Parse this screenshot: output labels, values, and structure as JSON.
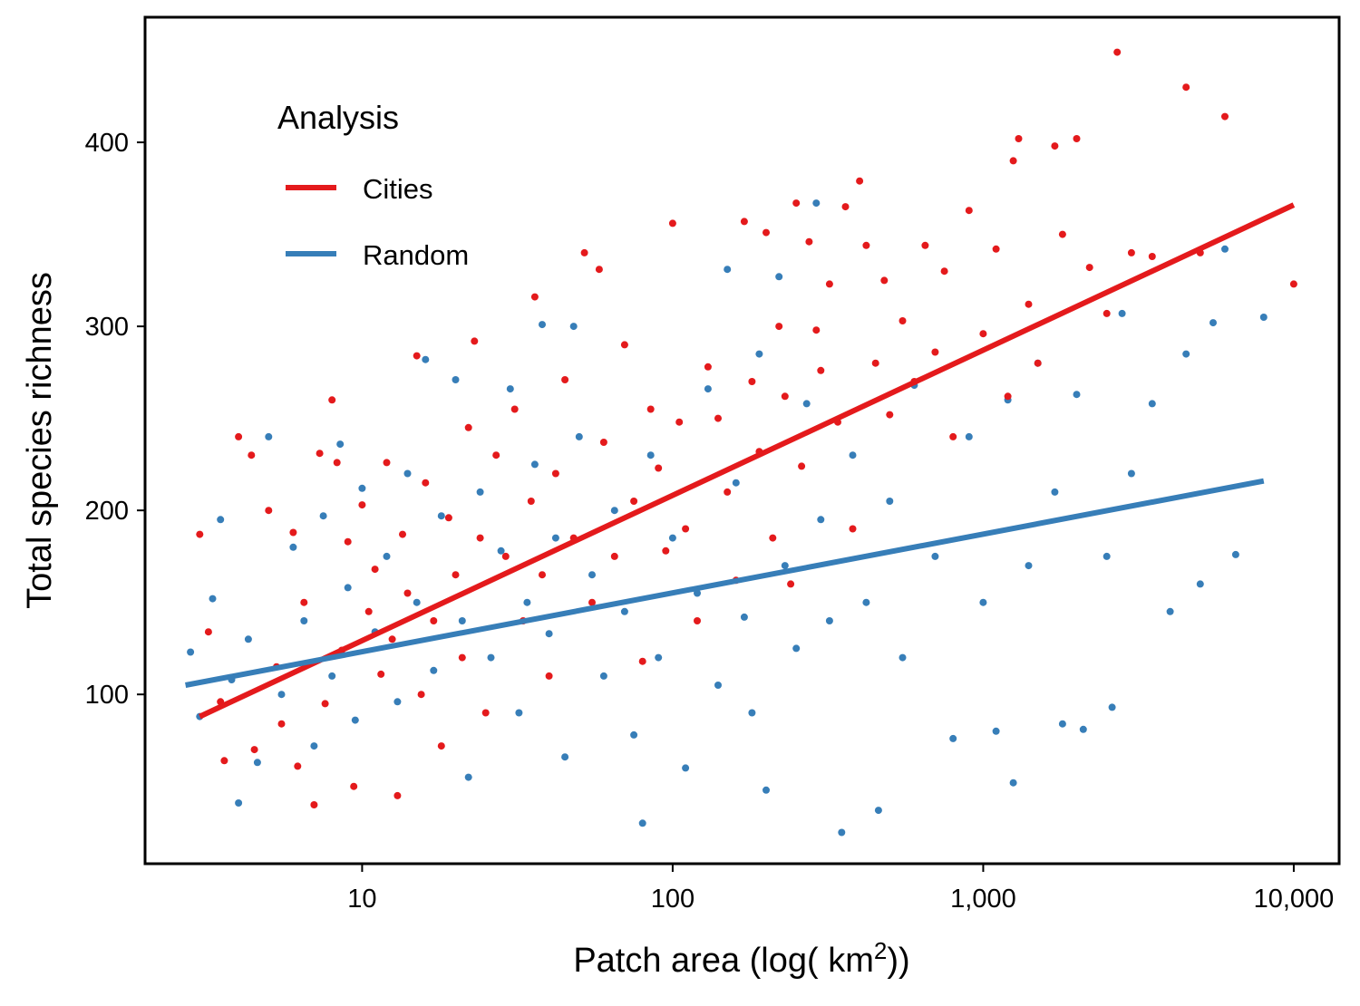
{
  "chart_data": {
    "type": "scatter",
    "xlabel_main": "Patch area (log( km",
    "xlabel_sup": "2",
    "xlabel_end": "))",
    "ylabel": "Total species richness",
    "x_scale": "log10",
    "xlim": [
      2,
      14000
    ],
    "ylim": [
      8,
      468
    ],
    "x_ticks": [
      10,
      100,
      1000,
      10000
    ],
    "x_tick_labels": [
      "10",
      "100",
      "1,000",
      "10,000"
    ],
    "y_ticks": [
      100,
      200,
      300,
      400
    ],
    "y_tick_labels": [
      "100",
      "200",
      "300",
      "400"
    ],
    "grid": false,
    "legend": {
      "title": "Analysis",
      "position": "top-left",
      "items": [
        {
          "label": "Cities",
          "color": "#e41a1c"
        },
        {
          "label": "Random",
          "color": "#377eb8"
        }
      ]
    },
    "series": [
      {
        "name": "Cities",
        "color": "#e41a1c",
        "fit_line": {
          "x": [
            3,
            10000
          ],
          "y": [
            88,
            366
          ]
        },
        "points": [
          [
            3,
            187
          ],
          [
            3.2,
            134
          ],
          [
            3.5,
            96
          ],
          [
            3.6,
            64
          ],
          [
            4,
            240
          ],
          [
            4.4,
            230
          ],
          [
            4.5,
            70
          ],
          [
            5,
            200
          ],
          [
            5.3,
            115
          ],
          [
            5.5,
            84
          ],
          [
            6,
            188
          ],
          [
            6.2,
            61
          ],
          [
            6.5,
            150
          ],
          [
            7,
            40
          ],
          [
            7.3,
            231
          ],
          [
            7.6,
            95
          ],
          [
            8,
            260
          ],
          [
            8.3,
            226
          ],
          [
            8.6,
            124
          ],
          [
            9,
            183
          ],
          [
            9.4,
            50
          ],
          [
            10,
            203
          ],
          [
            10.5,
            145
          ],
          [
            11,
            168
          ],
          [
            11.5,
            111
          ],
          [
            12,
            226
          ],
          [
            12.5,
            130
          ],
          [
            13,
            45
          ],
          [
            13.5,
            187
          ],
          [
            14,
            155
          ],
          [
            15,
            284
          ],
          [
            15.5,
            100
          ],
          [
            16,
            215
          ],
          [
            17,
            140
          ],
          [
            18,
            72
          ],
          [
            19,
            196
          ],
          [
            20,
            165
          ],
          [
            21,
            120
          ],
          [
            22,
            245
          ],
          [
            23,
            292
          ],
          [
            24,
            185
          ],
          [
            25,
            90
          ],
          [
            27,
            230
          ],
          [
            29,
            175
          ],
          [
            31,
            255
          ],
          [
            33,
            140
          ],
          [
            35,
            205
          ],
          [
            36,
            316
          ],
          [
            38,
            165
          ],
          [
            40,
            110
          ],
          [
            42,
            220
          ],
          [
            45,
            271
          ],
          [
            48,
            185
          ],
          [
            52,
            340
          ],
          [
            55,
            150
          ],
          [
            58,
            331
          ],
          [
            60,
            237
          ],
          [
            65,
            175
          ],
          [
            70,
            290
          ],
          [
            75,
            205
          ],
          [
            80,
            118
          ],
          [
            85,
            255
          ],
          [
            90,
            223
          ],
          [
            95,
            178
          ],
          [
            100,
            356
          ],
          [
            105,
            248
          ],
          [
            110,
            190
          ],
          [
            120,
            140
          ],
          [
            130,
            278
          ],
          [
            140,
            250
          ],
          [
            150,
            210
          ],
          [
            160,
            162
          ],
          [
            170,
            357
          ],
          [
            180,
            270
          ],
          [
            190,
            232
          ],
          [
            200,
            351
          ],
          [
            210,
            185
          ],
          [
            220,
            300
          ],
          [
            230,
            262
          ],
          [
            240,
            160
          ],
          [
            250,
            367
          ],
          [
            260,
            224
          ],
          [
            275,
            346
          ],
          [
            290,
            298
          ],
          [
            300,
            276
          ],
          [
            320,
            323
          ],
          [
            340,
            248
          ],
          [
            360,
            365
          ],
          [
            380,
            190
          ],
          [
            400,
            379
          ],
          [
            420,
            344
          ],
          [
            450,
            280
          ],
          [
            480,
            325
          ],
          [
            500,
            252
          ],
          [
            550,
            303
          ],
          [
            600,
            270
          ],
          [
            650,
            344
          ],
          [
            700,
            286
          ],
          [
            750,
            330
          ],
          [
            800,
            240
          ],
          [
            900,
            363
          ],
          [
            1000,
            296
          ],
          [
            1100,
            342
          ],
          [
            1200,
            262
          ],
          [
            1250,
            390
          ],
          [
            1300,
            402
          ],
          [
            1400,
            312
          ],
          [
            1500,
            280
          ],
          [
            1700,
            398
          ],
          [
            1800,
            350
          ],
          [
            2000,
            402
          ],
          [
            2200,
            332
          ],
          [
            2500,
            307
          ],
          [
            2700,
            449
          ],
          [
            3000,
            340
          ],
          [
            3500,
            338
          ],
          [
            4500,
            430
          ],
          [
            5000,
            340
          ],
          [
            6000,
            414
          ],
          [
            10000,
            323
          ]
        ]
      },
      {
        "name": "Random",
        "color": "#377eb8",
        "fit_line": {
          "x": [
            2.7,
            8000
          ],
          "y": [
            105,
            216
          ]
        },
        "points": [
          [
            2.8,
            123
          ],
          [
            3,
            88
          ],
          [
            3.3,
            152
          ],
          [
            3.5,
            195
          ],
          [
            3.8,
            108
          ],
          [
            4,
            41
          ],
          [
            4.3,
            130
          ],
          [
            4.6,
            63
          ],
          [
            5,
            240
          ],
          [
            5.5,
            100
          ],
          [
            6,
            180
          ],
          [
            6.5,
            140
          ],
          [
            7,
            72
          ],
          [
            7.5,
            197
          ],
          [
            8,
            110
          ],
          [
            8.5,
            236
          ],
          [
            9,
            158
          ],
          [
            9.5,
            86
          ],
          [
            10,
            212
          ],
          [
            11,
            134
          ],
          [
            12,
            175
          ],
          [
            13,
            96
          ],
          [
            14,
            220
          ],
          [
            15,
            150
          ],
          [
            16,
            282
          ],
          [
            17,
            113
          ],
          [
            18,
            197
          ],
          [
            20,
            271
          ],
          [
            21,
            140
          ],
          [
            22,
            55
          ],
          [
            24,
            210
          ],
          [
            26,
            120
          ],
          [
            28,
            178
          ],
          [
            30,
            266
          ],
          [
            32,
            90
          ],
          [
            34,
            150
          ],
          [
            36,
            225
          ],
          [
            38,
            301
          ],
          [
            40,
            133
          ],
          [
            42,
            185
          ],
          [
            45,
            66
          ],
          [
            48,
            300
          ],
          [
            50,
            240
          ],
          [
            55,
            165
          ],
          [
            60,
            110
          ],
          [
            65,
            200
          ],
          [
            70,
            145
          ],
          [
            75,
            78
          ],
          [
            80,
            30
          ],
          [
            85,
            230
          ],
          [
            90,
            120
          ],
          [
            100,
            185
          ],
          [
            110,
            60
          ],
          [
            120,
            155
          ],
          [
            130,
            266
          ],
          [
            140,
            105
          ],
          [
            150,
            331
          ],
          [
            160,
            215
          ],
          [
            170,
            142
          ],
          [
            180,
            90
          ],
          [
            190,
            285
          ],
          [
            200,
            48
          ],
          [
            220,
            327
          ],
          [
            230,
            170
          ],
          [
            250,
            125
          ],
          [
            270,
            258
          ],
          [
            290,
            367
          ],
          [
            300,
            195
          ],
          [
            320,
            140
          ],
          [
            350,
            25
          ],
          [
            380,
            230
          ],
          [
            420,
            150
          ],
          [
            460,
            37
          ],
          [
            500,
            205
          ],
          [
            550,
            120
          ],
          [
            600,
            268
          ],
          [
            700,
            175
          ],
          [
            800,
            76
          ],
          [
            900,
            240
          ],
          [
            1000,
            150
          ],
          [
            1100,
            80
          ],
          [
            1200,
            260
          ],
          [
            1250,
            52
          ],
          [
            1400,
            170
          ],
          [
            1500,
            280
          ],
          [
            1700,
            210
          ],
          [
            1800,
            84
          ],
          [
            2000,
            263
          ],
          [
            2100,
            81
          ],
          [
            2500,
            175
          ],
          [
            2600,
            93
          ],
          [
            2800,
            307
          ],
          [
            3000,
            220
          ],
          [
            3500,
            258
          ],
          [
            4000,
            145
          ],
          [
            4500,
            285
          ],
          [
            5000,
            160
          ],
          [
            5500,
            302
          ],
          [
            6000,
            342
          ],
          [
            6500,
            176
          ],
          [
            8000,
            305
          ]
        ]
      }
    ]
  }
}
